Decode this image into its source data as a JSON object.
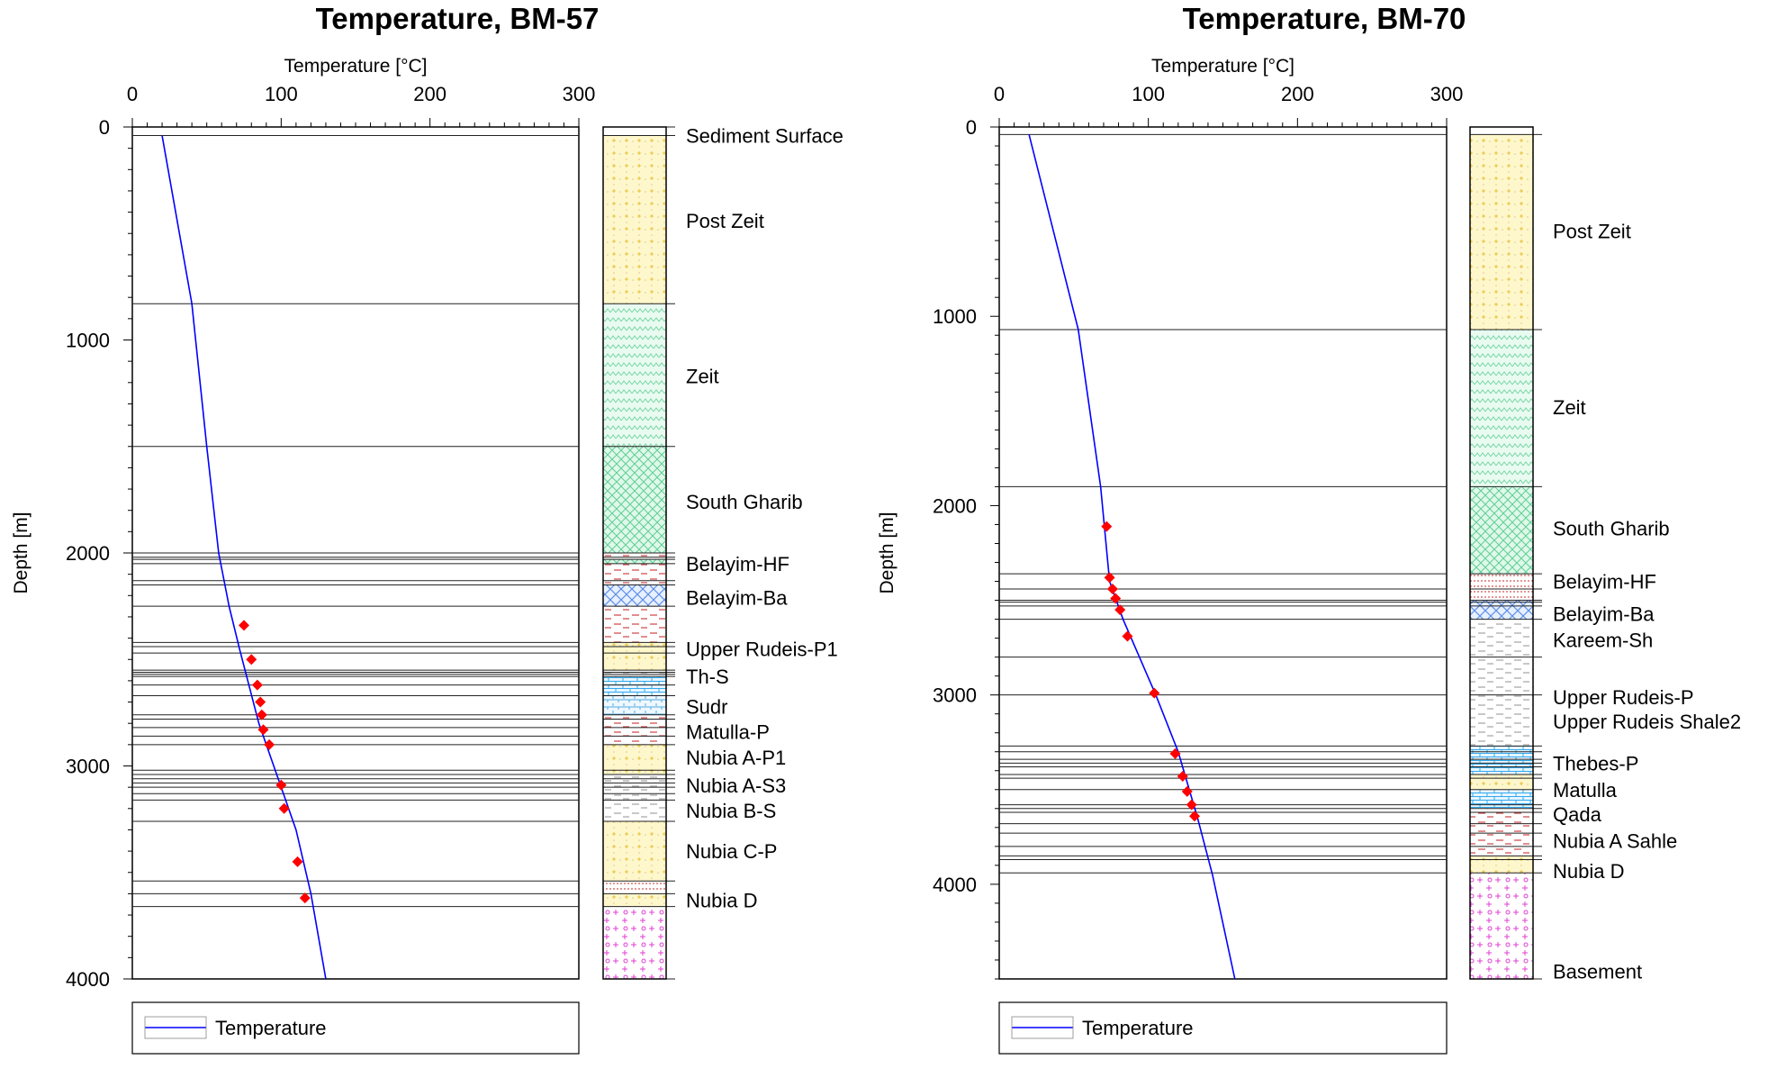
{
  "chart_data": [
    {
      "type": "line",
      "title": "Temperature, BM-57",
      "xlabel": "Temperature [°C]",
      "ylabel": "Depth [m]",
      "xlim": [
        0,
        300
      ],
      "ylim": [
        4000,
        0
      ],
      "x_ticks": [
        0,
        100,
        200,
        300
      ],
      "y_ticks": [
        0,
        1000,
        2000,
        3000,
        4000
      ],
      "legend": "bottom",
      "grid": false,
      "series": [
        {
          "name": "Temperature",
          "kind": "line",
          "color": "#0000ff",
          "points": [
            [
              20,
              40
            ],
            [
              40,
              830
            ],
            [
              50,
              1500
            ],
            [
              58,
              2000
            ],
            [
              65,
              2250
            ],
            [
              72,
              2450
            ],
            [
              85,
              2800
            ],
            [
              100,
              3100
            ],
            [
              110,
              3300
            ],
            [
              120,
              3600
            ],
            [
              130,
              4000
            ]
          ]
        },
        {
          "kind": "markers",
          "color": "#ff0000",
          "points": [
            [
              75,
              2340
            ],
            [
              80,
              2500
            ],
            [
              84,
              2620
            ],
            [
              86,
              2700
            ],
            [
              87,
              2760
            ],
            [
              88,
              2830
            ],
            [
              92,
              2900
            ],
            [
              100,
              3090
            ],
            [
              102,
              3200
            ],
            [
              111,
              3450
            ],
            [
              116,
              3620
            ]
          ]
        }
      ],
      "formations": [
        {
          "name": "Sediment Surface",
          "top": 0,
          "bottom": 40,
          "label_depth": 40,
          "pattern": "none"
        },
        {
          "name": "Post Zeit",
          "top": 40,
          "bottom": 830,
          "label_depth": 440,
          "pattern": "sand"
        },
        {
          "name": "Zeit",
          "top": 830,
          "bottom": 1500,
          "label_depth": 1170,
          "pattern": "evap"
        },
        {
          "name": "South Gharib",
          "top": 1500,
          "bottom": 2000,
          "label_depth": 1760,
          "pattern": "salt"
        },
        {
          "name": "",
          "top": 2000,
          "bottom": 2030,
          "pattern": "shaleRed"
        },
        {
          "name": "",
          "top": 2030,
          "bottom": 2050,
          "pattern": "salt"
        },
        {
          "name": "Belayim-HF",
          "top": 2050,
          "bottom": 2150,
          "label_depth": 2050,
          "pattern": "shaleRed"
        },
        {
          "name": "Belayim-Ba",
          "top": 2150,
          "bottom": 2250,
          "label_depth": 2210,
          "pattern": "anhy"
        },
        {
          "name": "",
          "top": 2250,
          "bottom": 2420,
          "pattern": "shaleRed"
        },
        {
          "name": "Upper Rudeis-P1",
          "top": 2420,
          "bottom": 2470,
          "label_depth": 2450,
          "pattern": "sand"
        },
        {
          "name": "",
          "top": 2470,
          "bottom": 2550,
          "pattern": "sand"
        },
        {
          "name": "Th-S",
          "top": 2550,
          "bottom": 2580,
          "label_depth": 2580,
          "pattern": "shaleGray"
        },
        {
          "name": "",
          "top": 2580,
          "bottom": 2670,
          "pattern": "lime"
        },
        {
          "name": "Sudr",
          "top": 2670,
          "bottom": 2760,
          "label_depth": 2720,
          "pattern": "chalk"
        },
        {
          "name": "Matulla-P",
          "top": 2760,
          "bottom": 2900,
          "label_depth": 2840,
          "pattern": "shaleRed"
        },
        {
          "name": "Nubia A-P1",
          "top": 2900,
          "bottom": 3040,
          "label_depth": 2960,
          "pattern": "sand"
        },
        {
          "name": "Nubia A-S3",
          "top": 3040,
          "bottom": 3130,
          "label_depth": 3090,
          "pattern": "shaleGray"
        },
        {
          "name": "Nubia B-S",
          "top": 3130,
          "bottom": 3260,
          "label_depth": 3210,
          "pattern": "shaleGray"
        },
        {
          "name": "Nubia C-P",
          "top": 3260,
          "bottom": 3540,
          "label_depth": 3400,
          "pattern": "sand"
        },
        {
          "name": "",
          "top": 3540,
          "bottom": 3600,
          "pattern": "dots"
        },
        {
          "name": "Nubia D",
          "top": 3600,
          "bottom": 3660,
          "label_depth": 3630,
          "pattern": "sand"
        },
        {
          "name": "",
          "top": 3660,
          "bottom": 4000,
          "pattern": "basement"
        }
      ],
      "extra_lines": [
        2020,
        2130,
        2440,
        2560,
        2570,
        2620,
        2760,
        2780,
        2820,
        2860,
        3020,
        3060,
        3080,
        3100,
        3160
      ]
    },
    {
      "type": "line",
      "title": "Temperature, BM-70",
      "xlabel": "Temperature [°C]",
      "ylabel": "Depth [m]",
      "xlim": [
        0,
        300
      ],
      "ylim": [
        4500,
        0
      ],
      "x_ticks": [
        0,
        100,
        200,
        300
      ],
      "y_ticks": [
        0,
        1000,
        2000,
        3000,
        4000
      ],
      "legend": "bottom",
      "grid": false,
      "series": [
        {
          "name": "Temperature",
          "kind": "line",
          "color": "#0000ff",
          "points": [
            [
              20,
              40
            ],
            [
              53,
              1070
            ],
            [
              68,
              1900
            ],
            [
              74,
              2400
            ],
            [
              83,
              2600
            ],
            [
              105,
              3000
            ],
            [
              120,
              3300
            ],
            [
              133,
              3650
            ],
            [
              143,
              3950
            ],
            [
              158,
              4500
            ]
          ]
        },
        {
          "kind": "markers",
          "color": "#ff0000",
          "points": [
            [
              72,
              2110
            ],
            [
              74,
              2380
            ],
            [
              76,
              2440
            ],
            [
              78,
              2490
            ],
            [
              81,
              2550
            ],
            [
              86,
              2690
            ],
            [
              104,
              2990
            ],
            [
              118,
              3310
            ],
            [
              123,
              3430
            ],
            [
              126,
              3510
            ],
            [
              129,
              3580
            ],
            [
              131,
              3640
            ]
          ]
        }
      ],
      "formations": [
        {
          "name": "Post Zeit",
          "top": 40,
          "bottom": 1070,
          "label_depth": 550,
          "pattern": "sand"
        },
        {
          "name": "Zeit",
          "top": 1070,
          "bottom": 1900,
          "label_depth": 1480,
          "pattern": "evap"
        },
        {
          "name": "South Gharib",
          "top": 1900,
          "bottom": 2360,
          "label_depth": 2120,
          "pattern": "salt"
        },
        {
          "name": "Belayim-HF",
          "top": 2360,
          "bottom": 2500,
          "label_depth": 2400,
          "pattern": "dots"
        },
        {
          "name": "Belayim-Ba",
          "top": 2500,
          "bottom": 2600,
          "label_depth": 2570,
          "pattern": "anhy"
        },
        {
          "name": "Kareem-Sh",
          "top": 2600,
          "bottom": 2800,
          "label_depth": 2710,
          "pattern": "shaleGray"
        },
        {
          "name": "Upper Rudeis-P",
          "top": 2800,
          "bottom": 3000,
          "label_depth": 3010,
          "pattern": "shaleGray"
        },
        {
          "name": "Upper Rudeis Shale2",
          "top": 3000,
          "bottom": 3270,
          "label_depth": 3140,
          "pattern": "shaleGray"
        },
        {
          "name": "Thebes-P",
          "top": 3270,
          "bottom": 3420,
          "label_depth": 3360,
          "pattern": "lime"
        },
        {
          "name": "Matulla",
          "top": 3420,
          "bottom": 3500,
          "label_depth": 3500,
          "pattern": "sand"
        },
        {
          "name": "Qada",
          "top": 3500,
          "bottom": 3600,
          "label_depth": 3630,
          "pattern": "lime"
        },
        {
          "name": "Nubia A Sahle",
          "top": 3600,
          "bottom": 3850,
          "label_depth": 3770,
          "pattern": "shaleRed"
        },
        {
          "name": "Nubia D",
          "top": 3850,
          "bottom": 3940,
          "label_depth": 3930,
          "pattern": "sand"
        },
        {
          "name": "Basement",
          "top": 3940,
          "bottom": 4500,
          "label_depth": 4460,
          "pattern": "basement"
        }
      ],
      "extra_lines": [
        2440,
        2510,
        2530,
        3300,
        3340,
        3360,
        3380,
        3440,
        3580,
        3620,
        3680,
        3730,
        3800,
        3870
      ]
    }
  ]
}
